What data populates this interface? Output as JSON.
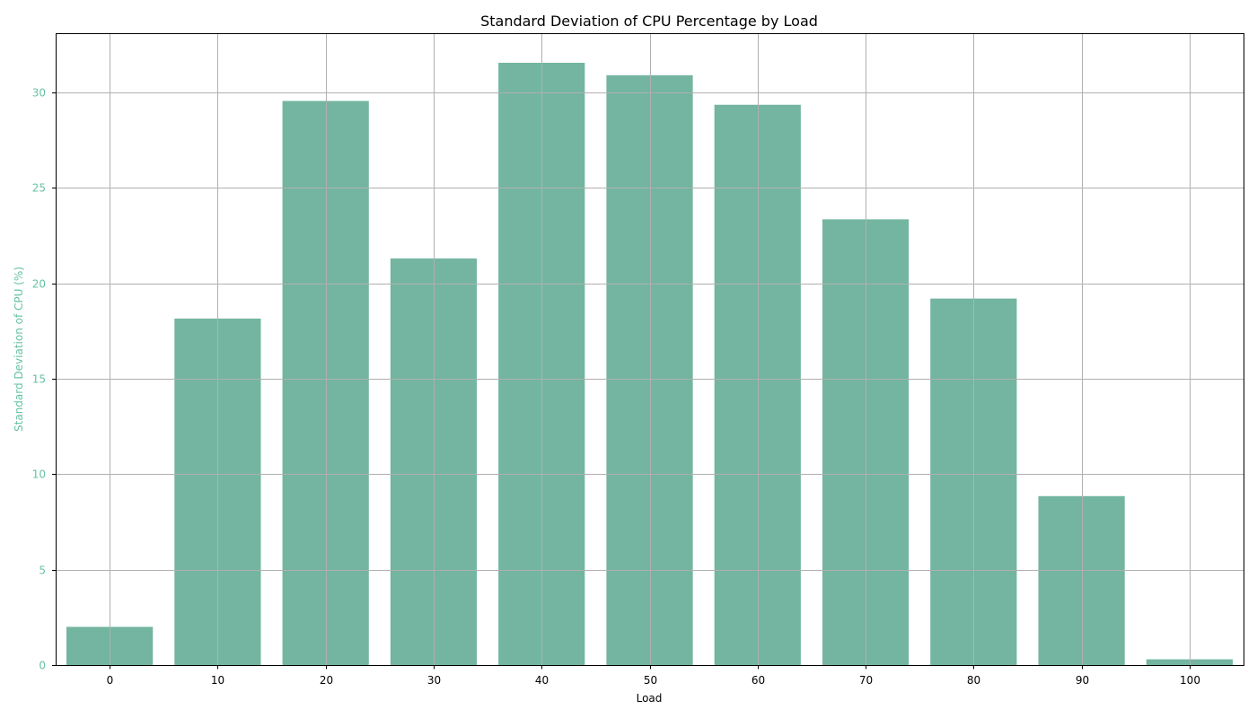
{
  "chart_data": {
    "type": "bar",
    "title": "Standard Deviation of CPU Percentage by Load",
    "xlabel": "Load",
    "ylabel": "Standard Deviation of CPU (%)",
    "categories": [
      "0",
      "10",
      "20",
      "30",
      "40",
      "50",
      "60",
      "70",
      "80",
      "90",
      "100"
    ],
    "values": [
      2.0,
      18.15,
      29.55,
      21.3,
      31.55,
      30.9,
      29.35,
      23.35,
      19.2,
      8.85,
      0.3
    ],
    "ylim": [
      0,
      33.1
    ],
    "yticks": [
      0,
      5,
      10,
      15,
      20,
      25,
      30
    ],
    "grid": true,
    "legend": "none",
    "colors": {
      "bar": "#73b5a0",
      "ylabel_ticks": "#66c2a5",
      "grid": "#b0b0b0"
    }
  }
}
